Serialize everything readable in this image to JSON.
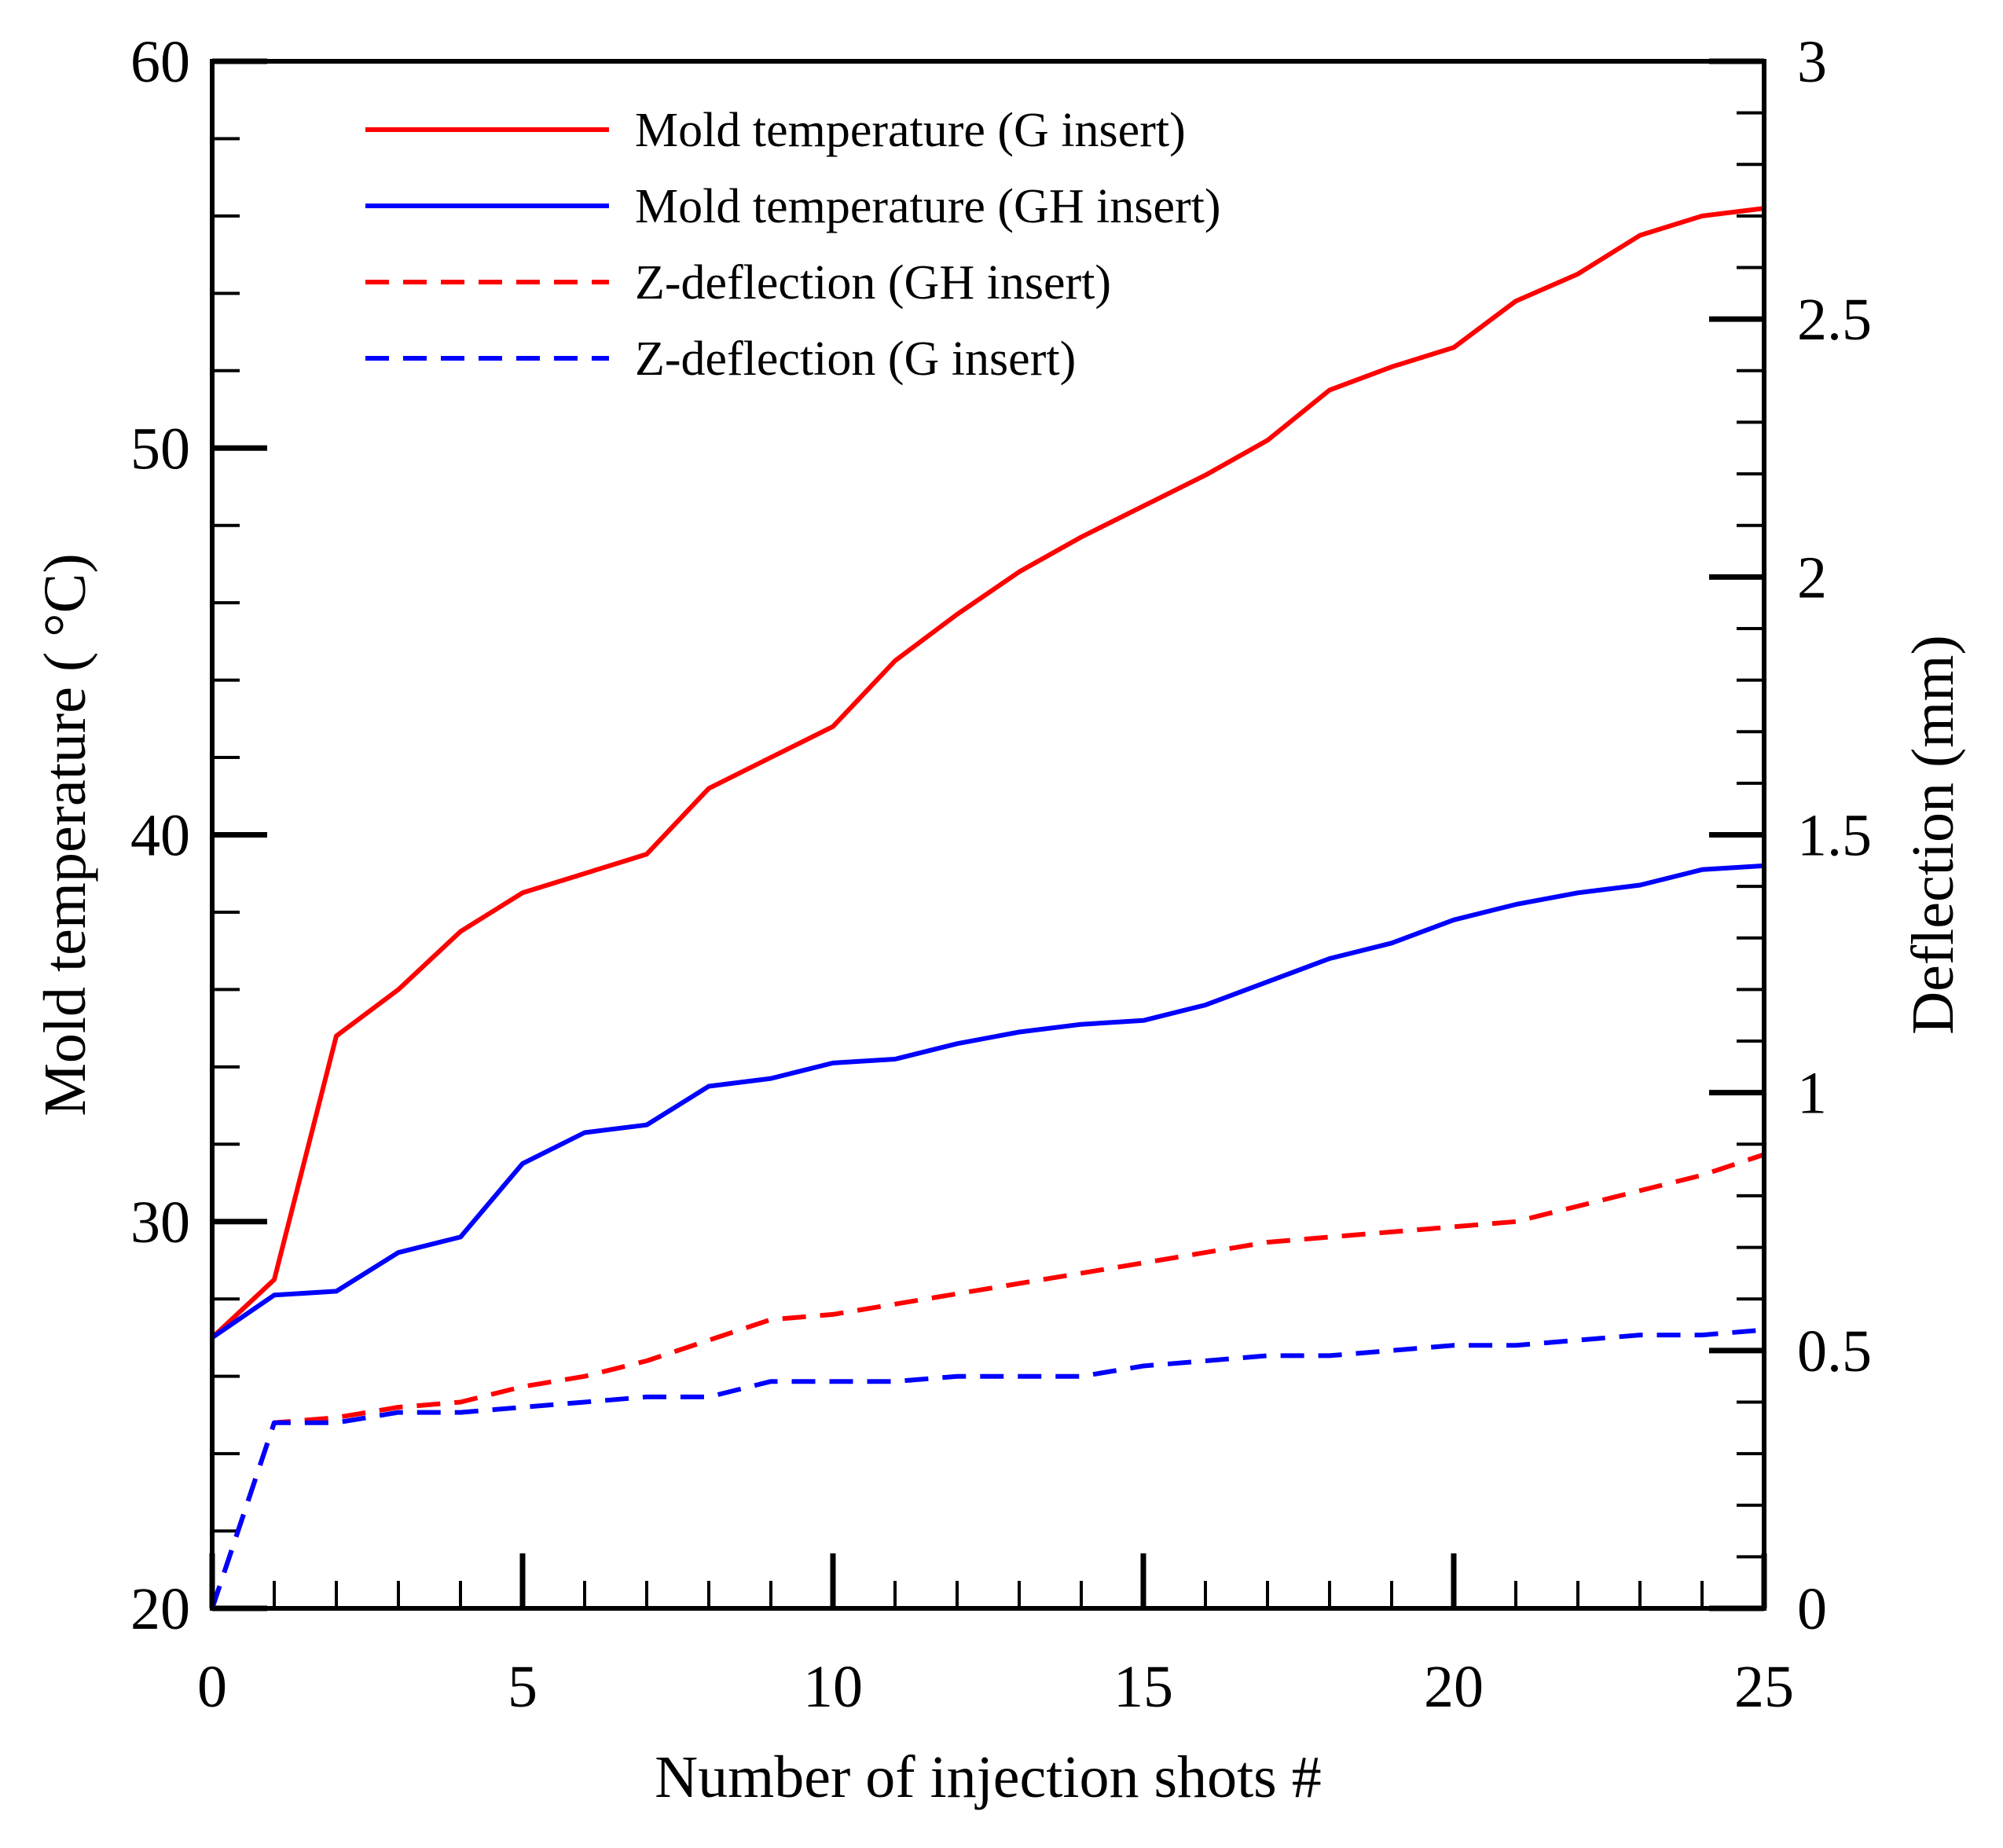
{
  "chart_data": {
    "type": "line",
    "title": "",
    "xlabel": "Number of injection shots #",
    "ylabel_left": "Mold temperature ( °C)",
    "ylabel_right": "Deflection (mm)",
    "xlim": [
      0,
      25
    ],
    "ylim_left": [
      20,
      60
    ],
    "ylim_right": [
      0,
      3
    ],
    "x_ticks": [
      0,
      5,
      10,
      15,
      20,
      25
    ],
    "x_tick_labels": [
      "0",
      "5",
      "10",
      "15",
      "20",
      "25"
    ],
    "y_left_ticks": [
      20,
      30,
      40,
      50,
      60
    ],
    "y_left_tick_labels": [
      "20",
      "30",
      "40",
      "50",
      "60"
    ],
    "y_right_ticks": [
      0,
      0.5,
      1,
      1.5,
      2,
      2.5,
      3
    ],
    "y_right_tick_labels": [
      "0",
      "0.5",
      "1",
      "1.5",
      "2",
      "2.5",
      "3"
    ],
    "grid": false,
    "legend_position": "top-left",
    "x": [
      0,
      1,
      2,
      3,
      4,
      5,
      6,
      7,
      8,
      9,
      10,
      11,
      12,
      13,
      14,
      15,
      16,
      17,
      18,
      19,
      20,
      21,
      22,
      23,
      24,
      25
    ],
    "series": [
      {
        "name": "Mold temperature (G insert)",
        "axis": "left",
        "color": "#ff0000",
        "dash": "solid",
        "values": [
          27.0,
          28.5,
          34.8,
          36.0,
          37.5,
          38.5,
          39.0,
          39.5,
          41.2,
          42.0,
          42.8,
          44.5,
          45.7,
          46.8,
          47.7,
          48.5,
          49.3,
          50.2,
          51.5,
          52.1,
          52.6,
          53.8,
          54.5,
          55.5,
          56.0,
          56.2
        ]
      },
      {
        "name": "Mold temperature (GH insert)",
        "axis": "left",
        "color": "#0000ff",
        "dash": "solid",
        "values": [
          27.0,
          28.1,
          28.2,
          29.2,
          29.6,
          31.5,
          32.3,
          32.5,
          33.5,
          33.7,
          34.1,
          34.2,
          34.6,
          34.9,
          35.1,
          35.2,
          35.6,
          36.2,
          36.8,
          37.2,
          37.8,
          38.2,
          38.5,
          38.7,
          39.1,
          39.2
        ]
      },
      {
        "name": "Z-deflection (GH insert)",
        "axis": "right",
        "color": "#ff0000",
        "dash": "dashed",
        "values": [
          0.0,
          0.36,
          0.37,
          0.39,
          0.4,
          0.43,
          0.45,
          0.48,
          0.52,
          0.56,
          0.57,
          0.59,
          0.61,
          0.63,
          0.65,
          0.67,
          0.69,
          0.71,
          0.72,
          0.73,
          0.74,
          0.75,
          0.78,
          0.81,
          0.84,
          0.88
        ]
      },
      {
        "name": "Z-deflection (G insert)",
        "axis": "right",
        "color": "#0000ff",
        "dash": "dashed",
        "values": [
          0.0,
          0.36,
          0.36,
          0.38,
          0.38,
          0.39,
          0.4,
          0.41,
          0.41,
          0.44,
          0.44,
          0.44,
          0.45,
          0.45,
          0.45,
          0.47,
          0.48,
          0.49,
          0.49,
          0.5,
          0.51,
          0.51,
          0.52,
          0.53,
          0.53,
          0.54
        ]
      }
    ]
  }
}
